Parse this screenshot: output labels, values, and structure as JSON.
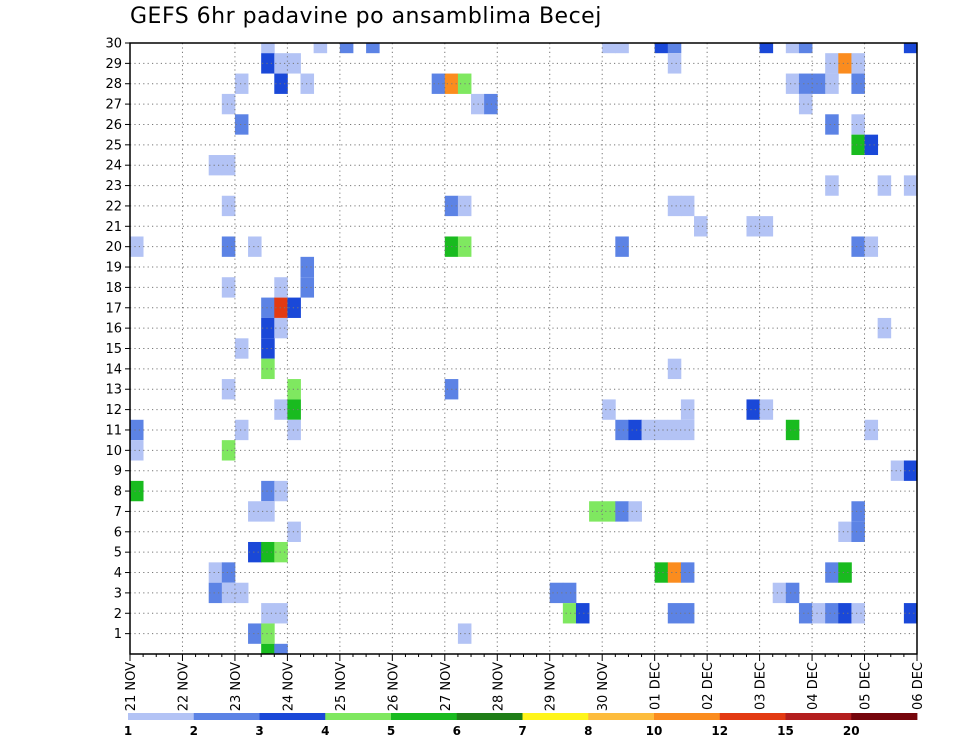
{
  "title": "GEFS 6hr padavine po ansamblima Becej",
  "chart_data": {
    "type": "heatmap",
    "title": "GEFS 6hr padavine po ansamblima Becej",
    "xlabel": "",
    "ylabel": "",
    "x_ticks": [
      "21 NOV",
      "22 NOV",
      "23 NOV",
      "24 NOV",
      "25 NOV",
      "26 NOV",
      "27 NOV",
      "28 NOV",
      "29 NOV",
      "30 NOV",
      "01 DEC",
      "02 DEC",
      "03 DEC",
      "04 DEC",
      "05 DEC",
      "06 DEC"
    ],
    "y_ticks": [
      1,
      2,
      3,
      4,
      5,
      6,
      7,
      8,
      9,
      10,
      11,
      12,
      13,
      14,
      15,
      16,
      17,
      18,
      19,
      20,
      21,
      22,
      23,
      24,
      25,
      26,
      27,
      28,
      29,
      30
    ],
    "xlim": [
      "21 NOV 00Z",
      "06 DEC 00Z"
    ],
    "ylim": [
      0,
      30
    ],
    "grid": true,
    "color_levels": [
      1,
      2,
      3,
      4,
      5,
      6,
      7,
      8,
      10,
      12,
      15,
      20
    ],
    "colors": [
      "#b3c3f5",
      "#5c83e5",
      "#1a48d8",
      "#7fe860",
      "#19bb1f",
      "#1f7e18",
      "#fff51a",
      "#fdbc3c",
      "#fb8c1e",
      "#e33a12",
      "#b31e1e",
      "#76060c"
    ],
    "cells_note": "each cell: [ensemble member, day offset from 21 NOV 00Z, colour class index into colors]",
    "cells": [
      [
        30,
        2.625,
        0
      ],
      [
        30,
        3.625,
        0
      ],
      [
        30,
        4.125,
        1
      ],
      [
        30,
        4.625,
        1
      ],
      [
        30,
        9.125,
        0
      ],
      [
        30,
        9.375,
        0
      ],
      [
        30,
        10.125,
        2
      ],
      [
        30,
        10.375,
        1
      ],
      [
        30,
        12.125,
        2
      ],
      [
        30,
        12.625,
        0
      ],
      [
        30,
        12.875,
        1
      ],
      [
        30,
        14.875,
        2
      ],
      [
        29,
        2.625,
        2
      ],
      [
        29,
        2.875,
        0
      ],
      [
        29,
        3.125,
        0
      ],
      [
        29,
        10.375,
        0
      ],
      [
        29,
        13.375,
        0
      ],
      [
        29,
        13.625,
        8
      ],
      [
        29,
        13.875,
        0
      ],
      [
        28,
        2.125,
        0
      ],
      [
        28,
        2.875,
        2
      ],
      [
        28,
        3.375,
        0
      ],
      [
        28,
        5.875,
        1
      ],
      [
        28,
        6.125,
        8
      ],
      [
        28,
        6.375,
        3
      ],
      [
        28,
        12.625,
        0
      ],
      [
        28,
        12.875,
        1
      ],
      [
        28,
        13.125,
        1
      ],
      [
        28,
        13.375,
        0
      ],
      [
        28,
        13.875,
        1
      ],
      [
        27,
        1.875,
        0
      ],
      [
        27,
        6.625,
        0
      ],
      [
        27,
        6.875,
        1
      ],
      [
        27,
        12.875,
        0
      ],
      [
        26,
        2.125,
        1
      ],
      [
        26,
        13.375,
        1
      ],
      [
        26,
        13.875,
        0
      ],
      [
        25,
        13.875,
        4
      ],
      [
        25,
        14.125,
        2
      ],
      [
        24,
        1.625,
        0
      ],
      [
        24,
        1.875,
        0
      ],
      [
        23,
        13.375,
        0
      ],
      [
        23,
        14.375,
        0
      ],
      [
        23,
        14.875,
        0
      ],
      [
        22,
        1.875,
        0
      ],
      [
        22,
        6.125,
        1
      ],
      [
        22,
        6.375,
        0
      ],
      [
        22,
        10.375,
        0
      ],
      [
        22,
        10.625,
        0
      ],
      [
        21,
        10.875,
        0
      ],
      [
        21,
        11.875,
        0
      ],
      [
        21,
        12.125,
        0
      ],
      [
        20,
        0.125,
        0
      ],
      [
        20,
        1.875,
        1
      ],
      [
        20,
        2.375,
        0
      ],
      [
        20,
        6.125,
        4
      ],
      [
        20,
        6.375,
        3
      ],
      [
        20,
        9.375,
        1
      ],
      [
        20,
        13.875,
        1
      ],
      [
        20,
        14.125,
        0
      ],
      [
        19,
        3.375,
        1
      ],
      [
        18,
        1.875,
        0
      ],
      [
        18,
        2.875,
        0
      ],
      [
        18,
        3.375,
        1
      ],
      [
        17,
        2.625,
        1
      ],
      [
        17,
        2.875,
        9
      ],
      [
        17,
        3.125,
        2
      ],
      [
        16,
        2.625,
        2
      ],
      [
        16,
        2.875,
        0
      ],
      [
        16,
        14.375,
        0
      ],
      [
        15,
        2.125,
        0
      ],
      [
        15,
        2.625,
        2
      ],
      [
        14,
        2.625,
        3
      ],
      [
        14,
        10.375,
        0
      ],
      [
        13,
        1.875,
        0
      ],
      [
        13,
        3.125,
        3
      ],
      [
        13,
        6.125,
        1
      ],
      [
        12,
        2.875,
        0
      ],
      [
        12,
        3.125,
        4
      ],
      [
        12,
        9.125,
        0
      ],
      [
        12,
        10.625,
        0
      ],
      [
        12,
        11.875,
        2
      ],
      [
        12,
        12.125,
        0
      ],
      [
        11,
        0.125,
        1
      ],
      [
        11,
        2.125,
        0
      ],
      [
        11,
        3.125,
        0
      ],
      [
        11,
        9.375,
        1
      ],
      [
        11,
        9.625,
        2
      ],
      [
        11,
        9.875,
        0
      ],
      [
        11,
        10.125,
        0
      ],
      [
        11,
        10.375,
        0
      ],
      [
        11,
        10.625,
        0
      ],
      [
        11,
        12.625,
        4
      ],
      [
        11,
        14.125,
        0
      ],
      [
        10,
        0.125,
        0
      ],
      [
        10,
        1.875,
        3
      ],
      [
        9,
        14.625,
        0
      ],
      [
        9,
        14.875,
        2
      ],
      [
        8,
        0.125,
        4
      ],
      [
        8,
        2.625,
        1
      ],
      [
        8,
        2.875,
        0
      ],
      [
        7,
        2.375,
        0
      ],
      [
        7,
        2.625,
        0
      ],
      [
        7,
        8.875,
        3
      ],
      [
        7,
        9.125,
        3
      ],
      [
        7,
        9.375,
        1
      ],
      [
        7,
        9.625,
        0
      ],
      [
        7,
        13.875,
        1
      ],
      [
        6,
        3.125,
        0
      ],
      [
        6,
        13.625,
        0
      ],
      [
        6,
        13.875,
        1
      ],
      [
        5,
        2.375,
        2
      ],
      [
        5,
        2.625,
        4
      ],
      [
        5,
        2.875,
        3
      ],
      [
        4,
        1.625,
        0
      ],
      [
        4,
        1.875,
        1
      ],
      [
        4,
        10.125,
        4
      ],
      [
        4,
        10.375,
        8
      ],
      [
        4,
        10.625,
        1
      ],
      [
        4,
        13.375,
        1
      ],
      [
        4,
        13.625,
        4
      ],
      [
        3,
        1.625,
        1
      ],
      [
        3,
        1.875,
        0
      ],
      [
        3,
        2.125,
        0
      ],
      [
        3,
        8.125,
        1
      ],
      [
        3,
        8.375,
        1
      ],
      [
        3,
        12.375,
        0
      ],
      [
        3,
        12.625,
        1
      ],
      [
        2,
        2.625,
        0
      ],
      [
        2,
        2.875,
        0
      ],
      [
        2,
        8.375,
        3
      ],
      [
        2,
        8.625,
        2
      ],
      [
        2,
        10.375,
        1
      ],
      [
        2,
        10.625,
        1
      ],
      [
        2,
        12.875,
        1
      ],
      [
        2,
        13.125,
        0
      ],
      [
        2,
        13.375,
        1
      ],
      [
        2,
        13.625,
        2
      ],
      [
        2,
        13.875,
        0
      ],
      [
        2,
        14.875,
        2
      ],
      [
        1,
        2.375,
        1
      ],
      [
        1,
        2.625,
        3
      ],
      [
        1,
        6.375,
        0
      ],
      [
        0,
        2.625,
        4
      ],
      [
        0,
        2.875,
        1
      ]
    ]
  }
}
